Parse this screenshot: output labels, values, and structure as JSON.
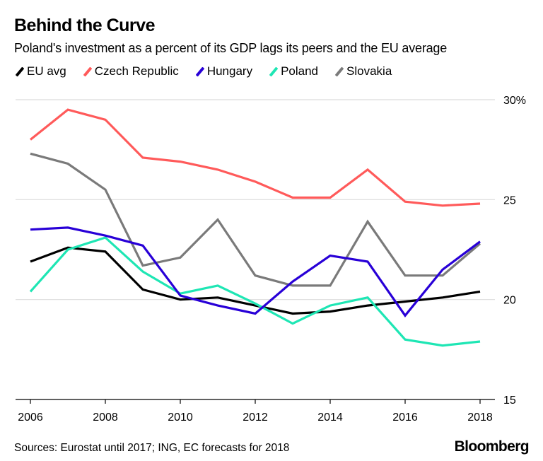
{
  "header": {
    "title": "Behind the Curve",
    "subtitle": "Poland's investment as a percent of its GDP lags its peers and the EU average"
  },
  "footer": {
    "source": "Sources: Eurostat until 2017; ING, EC forecasts for 2018",
    "brand": "Bloomberg"
  },
  "chart_data": {
    "type": "line",
    "title": "Behind the Curve",
    "subtitle": "Poland's investment as a percent of its GDP lags its peers and the EU average",
    "xlabel": "",
    "ylabel": "",
    "x": [
      2006,
      2007,
      2008,
      2009,
      2010,
      2011,
      2012,
      2013,
      2014,
      2015,
      2016,
      2017,
      2018
    ],
    "xlim": [
      2006,
      2018
    ],
    "xticks": [
      2006,
      2008,
      2010,
      2012,
      2014,
      2016,
      2018
    ],
    "xtick_labels": [
      "2006",
      "2008",
      "2010",
      "2012",
      "2014",
      "2016",
      "2018"
    ],
    "ylim": [
      15,
      30
    ],
    "yticks": [
      15,
      20,
      25,
      30
    ],
    "ytick_labels": [
      "15",
      "20",
      "25",
      "30%"
    ],
    "y_axis_side": "right",
    "grid": true,
    "legend_position": "top-left",
    "series": [
      {
        "name": "EU avg",
        "color": "#000000",
        "values": [
          21.9,
          22.6,
          22.4,
          20.5,
          20.0,
          20.1,
          19.7,
          19.3,
          19.4,
          19.7,
          19.9,
          20.1,
          20.4
        ]
      },
      {
        "name": "Czech Republic",
        "color": "#ff5a5a",
        "values": [
          28.0,
          29.5,
          29.0,
          27.1,
          26.9,
          26.5,
          25.9,
          25.1,
          25.1,
          26.5,
          24.9,
          24.7,
          24.8
        ]
      },
      {
        "name": "Hungary",
        "color": "#2800d7",
        "values": [
          23.5,
          23.6,
          23.2,
          22.7,
          20.2,
          19.7,
          19.3,
          20.9,
          22.2,
          21.9,
          19.2,
          21.5,
          22.9
        ]
      },
      {
        "name": "Poland",
        "color": "#1ee6b4",
        "values": [
          20.4,
          22.5,
          23.1,
          21.4,
          20.3,
          20.7,
          19.8,
          18.8,
          19.7,
          20.1,
          18.0,
          17.7,
          17.9
        ]
      },
      {
        "name": "Slovakia",
        "color": "#7a7a7a",
        "values": [
          27.3,
          26.8,
          25.5,
          21.7,
          22.1,
          24.0,
          21.2,
          20.7,
          20.7,
          23.9,
          21.2,
          21.2,
          22.8
        ]
      }
    ]
  }
}
